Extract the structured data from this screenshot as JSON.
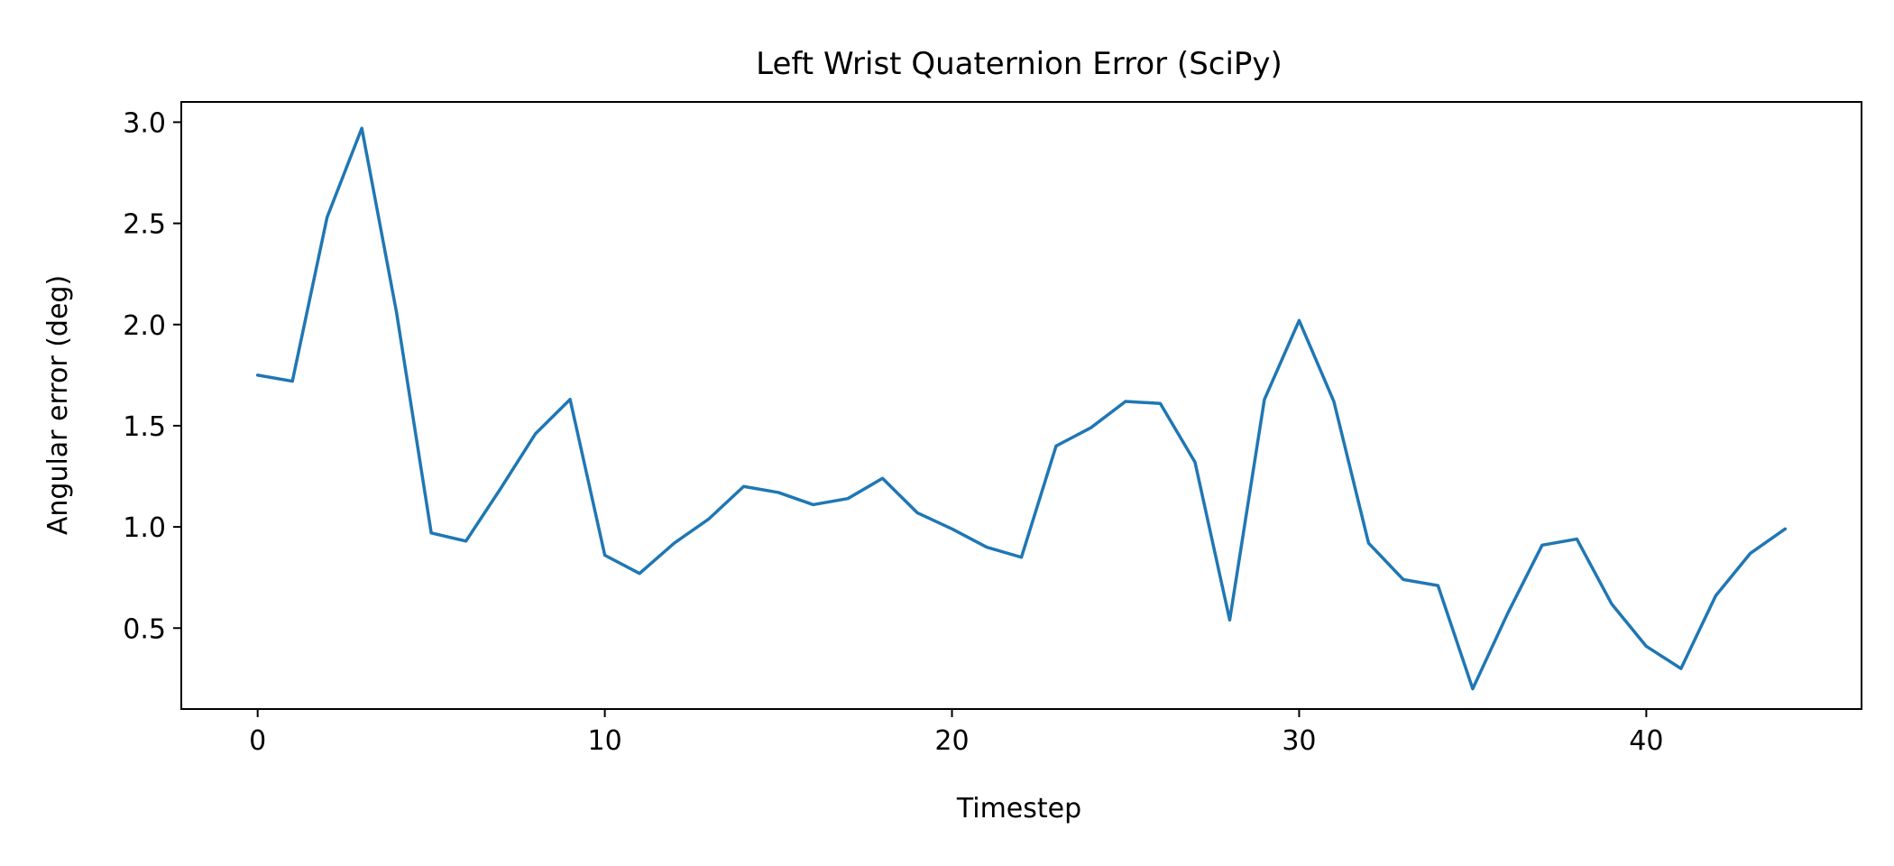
{
  "chart_data": {
    "type": "line",
    "title": "Left Wrist Quaternion Error (SciPy)",
    "xlabel": "Timestep",
    "ylabel": "Angular error (deg)",
    "xlim": [
      -2.2,
      46.2
    ],
    "ylim": [
      0.1,
      3.1
    ],
    "x_ticks": [
      0,
      10,
      20,
      30,
      40
    ],
    "y_ticks": [
      0.5,
      1.0,
      1.5,
      2.0,
      2.5,
      3.0
    ],
    "grid": false,
    "legend": "none",
    "series": [
      {
        "color": "#1f77b4",
        "x": [
          0,
          1,
          2,
          3,
          4,
          5,
          6,
          7,
          8,
          9,
          10,
          11,
          12,
          13,
          14,
          15,
          16,
          17,
          18,
          19,
          20,
          21,
          22,
          23,
          24,
          25,
          26,
          27,
          28,
          29,
          30,
          31,
          32,
          33,
          34,
          35,
          36,
          37,
          38,
          39,
          40,
          41,
          42,
          43,
          44
        ],
        "y": [
          1.75,
          1.72,
          2.53,
          2.97,
          2.06,
          0.97,
          0.93,
          1.19,
          1.46,
          1.63,
          0.86,
          0.77,
          0.92,
          1.04,
          1.2,
          1.17,
          1.11,
          1.14,
          1.24,
          1.07,
          0.99,
          0.9,
          0.85,
          1.4,
          1.49,
          1.62,
          1.61,
          1.32,
          0.54,
          1.63,
          2.02,
          1.62,
          0.92,
          0.74,
          0.71,
          0.2,
          0.57,
          0.91,
          0.94,
          0.62,
          0.41,
          0.3,
          0.66,
          0.87,
          0.99
        ]
      }
    ]
  }
}
